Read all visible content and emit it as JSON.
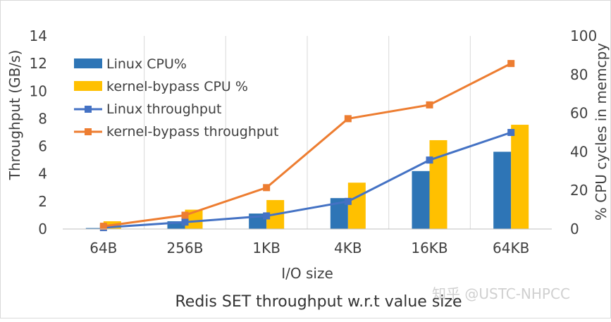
{
  "chart_data": {
    "type": "bar",
    "categories": [
      "64B",
      "256B",
      "1KB",
      "4KB",
      "16KB",
      "64KB"
    ],
    "bar_series": [
      {
        "name": "Linux CPU%",
        "values": [
          0.5,
          4,
          8,
          16,
          30,
          40
        ],
        "color": "#2e75b6"
      },
      {
        "name": "kernel-bypass CPU %",
        "values": [
          4,
          10,
          15,
          24,
          46,
          54
        ],
        "color": "#ffc000"
      }
    ],
    "line_series": [
      {
        "name": "Linux throughput",
        "values": [
          0.1,
          0.5,
          0.95,
          2.0,
          5.0,
          7.0
        ],
        "color": "#4472c4"
      },
      {
        "name": "kernel-bypass throughput",
        "values": [
          0.2,
          1.0,
          3.0,
          8.0,
          9.0,
          12.0
        ],
        "color": "#ed7d31"
      }
    ],
    "ylabel": "Throughput (GB/s)",
    "y2label": "% CPU cycles in memcpy",
    "xlabel": "I/O size",
    "ylim": [
      0,
      14
    ],
    "y2lim": [
      0,
      100
    ],
    "yticks": [
      "0",
      "2",
      "4",
      "6",
      "8",
      "10",
      "12",
      "14"
    ],
    "y2ticks": [
      "0",
      "20",
      "40",
      "60",
      "80",
      "100"
    ],
    "grid": "vertical",
    "legend_position": "top-left"
  },
  "caption": "Redis SET throughput w.r.t value size",
  "watermark": "知乎 @USTC-NHPCC"
}
